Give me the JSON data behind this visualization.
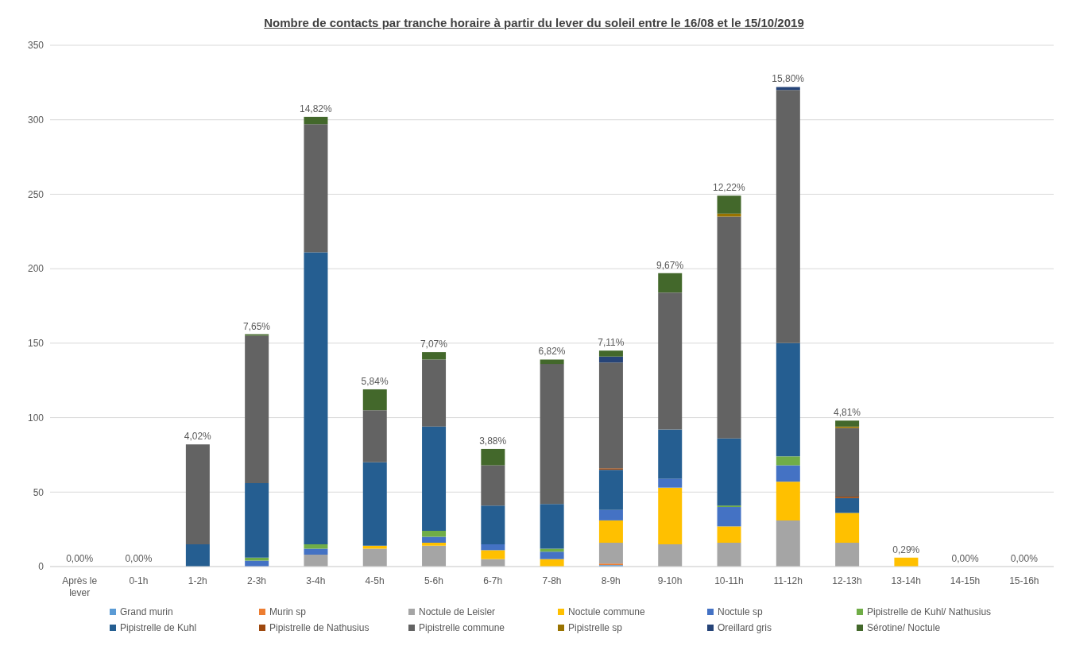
{
  "chart_data": {
    "type": "bar",
    "stacked": true,
    "title": "Nombre de contacts par tranche horaire à partir du lever du soleil entre le 16/08 et le 15/10/2019",
    "categories": [
      "Après le lever",
      "0-1h",
      "1-2h",
      "2-3h",
      "3-4h",
      "4-5h",
      "5-6h",
      "6-7h",
      "7-8h",
      "8-9h",
      "9-10h",
      "10-11h",
      "11-12h",
      "12-13h",
      "13-14h",
      "14-15h",
      "15-16h"
    ],
    "series": [
      {
        "name": "Grand murin",
        "color": "#5b9bd5",
        "values": [
          0,
          0,
          0,
          0,
          0,
          0,
          0,
          0,
          0,
          1,
          0,
          0,
          0,
          0,
          0,
          0,
          0
        ]
      },
      {
        "name": "Murin sp",
        "color": "#ed7d31",
        "values": [
          0,
          0,
          0,
          0,
          0,
          0,
          0,
          0,
          0,
          1,
          0,
          0,
          0,
          0,
          0,
          0,
          0
        ]
      },
      {
        "name": "Noctule de Leisler",
        "color": "#a5a5a5",
        "values": [
          0,
          0,
          0,
          0,
          8,
          12,
          14,
          5,
          0,
          14,
          15,
          16,
          31,
          16,
          0,
          0,
          0
        ]
      },
      {
        "name": "Noctule commune",
        "color": "#ffc000",
        "values": [
          0,
          0,
          0,
          0,
          0,
          2,
          2,
          6,
          5,
          15,
          38,
          11,
          26,
          20,
          6,
          0,
          0
        ]
      },
      {
        "name": "Noctule sp",
        "color": "#4472c4",
        "values": [
          0,
          0,
          0,
          4,
          4,
          0,
          4,
          4,
          5,
          7,
          6,
          13,
          11,
          0,
          0,
          0,
          0
        ]
      },
      {
        "name": "Pipistrelle de Kuhl/ Nathusius",
        "color": "#70ad47",
        "values": [
          0,
          0,
          0,
          2,
          3,
          0,
          4,
          0,
          2,
          0,
          0,
          1,
          6,
          0,
          0,
          0,
          0
        ]
      },
      {
        "name": "Pipistrelle de Kuhl",
        "color": "#255e91",
        "values": [
          0,
          0,
          15,
          50,
          196,
          56,
          70,
          26,
          30,
          27,
          33,
          45,
          76,
          10,
          0,
          0,
          0
        ]
      },
      {
        "name": "Pipistrelle de Nathusius",
        "color": "#9e480e",
        "values": [
          0,
          0,
          0,
          0,
          0,
          0,
          0,
          0,
          0,
          1,
          0,
          0,
          0,
          1,
          0,
          0,
          0
        ]
      },
      {
        "name": "Pipistrelle commune",
        "color": "#636363",
        "values": [
          0,
          0,
          67,
          99,
          86,
          35,
          45,
          27,
          94,
          71,
          92,
          149,
          170,
          46,
          0,
          0,
          0
        ]
      },
      {
        "name": "Pipistrelle sp",
        "color": "#997300",
        "values": [
          0,
          0,
          0,
          0,
          0,
          0,
          0,
          0,
          0,
          0,
          0,
          2,
          0,
          1,
          0,
          0,
          0
        ]
      },
      {
        "name": "Oreillard gris",
        "color": "#264478",
        "values": [
          0,
          0,
          0,
          0,
          0,
          0,
          0,
          0,
          0,
          4,
          0,
          0,
          2,
          0,
          0,
          0,
          0
        ]
      },
      {
        "name": "Sérotine/ Noctule",
        "color": "#43682b",
        "values": [
          0,
          0,
          0,
          1,
          5,
          14,
          5,
          11,
          3,
          4,
          13,
          12,
          0,
          4,
          0,
          0,
          0
        ]
      }
    ],
    "annotations": [
      {
        "text": "0,00%",
        "x": "Après le lever",
        "y": 0
      },
      {
        "text": "0,00%",
        "x": "0-1h",
        "y": 0
      },
      {
        "text": "4,02%",
        "x": "1-2h",
        "y": 82
      },
      {
        "text": "7,65%",
        "x": "2-3h",
        "y": 156
      },
      {
        "text": "14,82%",
        "x": "3-4h",
        "y": 302
      },
      {
        "text": "5,84%",
        "x": "4-5h",
        "y": 119
      },
      {
        "text": "7,07%",
        "x": "5-6h",
        "y": 144
      },
      {
        "text": "3,88%",
        "x": "6-7h",
        "y": 79
      },
      {
        "text": "6,82%",
        "x": "7-8h",
        "y": 139
      },
      {
        "text": "7,11%",
        "x": "8-9h",
        "y": 145
      },
      {
        "text": "9,67%",
        "x": "9-10h",
        "y": 197
      },
      {
        "text": "12,22%",
        "x": "10-11h",
        "y": 249
      },
      {
        "text": "15,80%",
        "x": "11-12h",
        "y": 322
      },
      {
        "text": "4,81%",
        "x": "12-13h",
        "y": 98
      },
      {
        "text": "0,29%",
        "x": "13-14h",
        "y": 6
      },
      {
        "text": "0,00%",
        "x": "14-15h",
        "y": 0
      },
      {
        "text": "0,00%",
        "x": "15-16h",
        "y": 0
      }
    ],
    "ylim": [
      0,
      350
    ],
    "yticks": [
      0,
      50,
      100,
      150,
      200,
      250,
      300,
      350
    ],
    "grid": "y",
    "legend": "bottom"
  }
}
